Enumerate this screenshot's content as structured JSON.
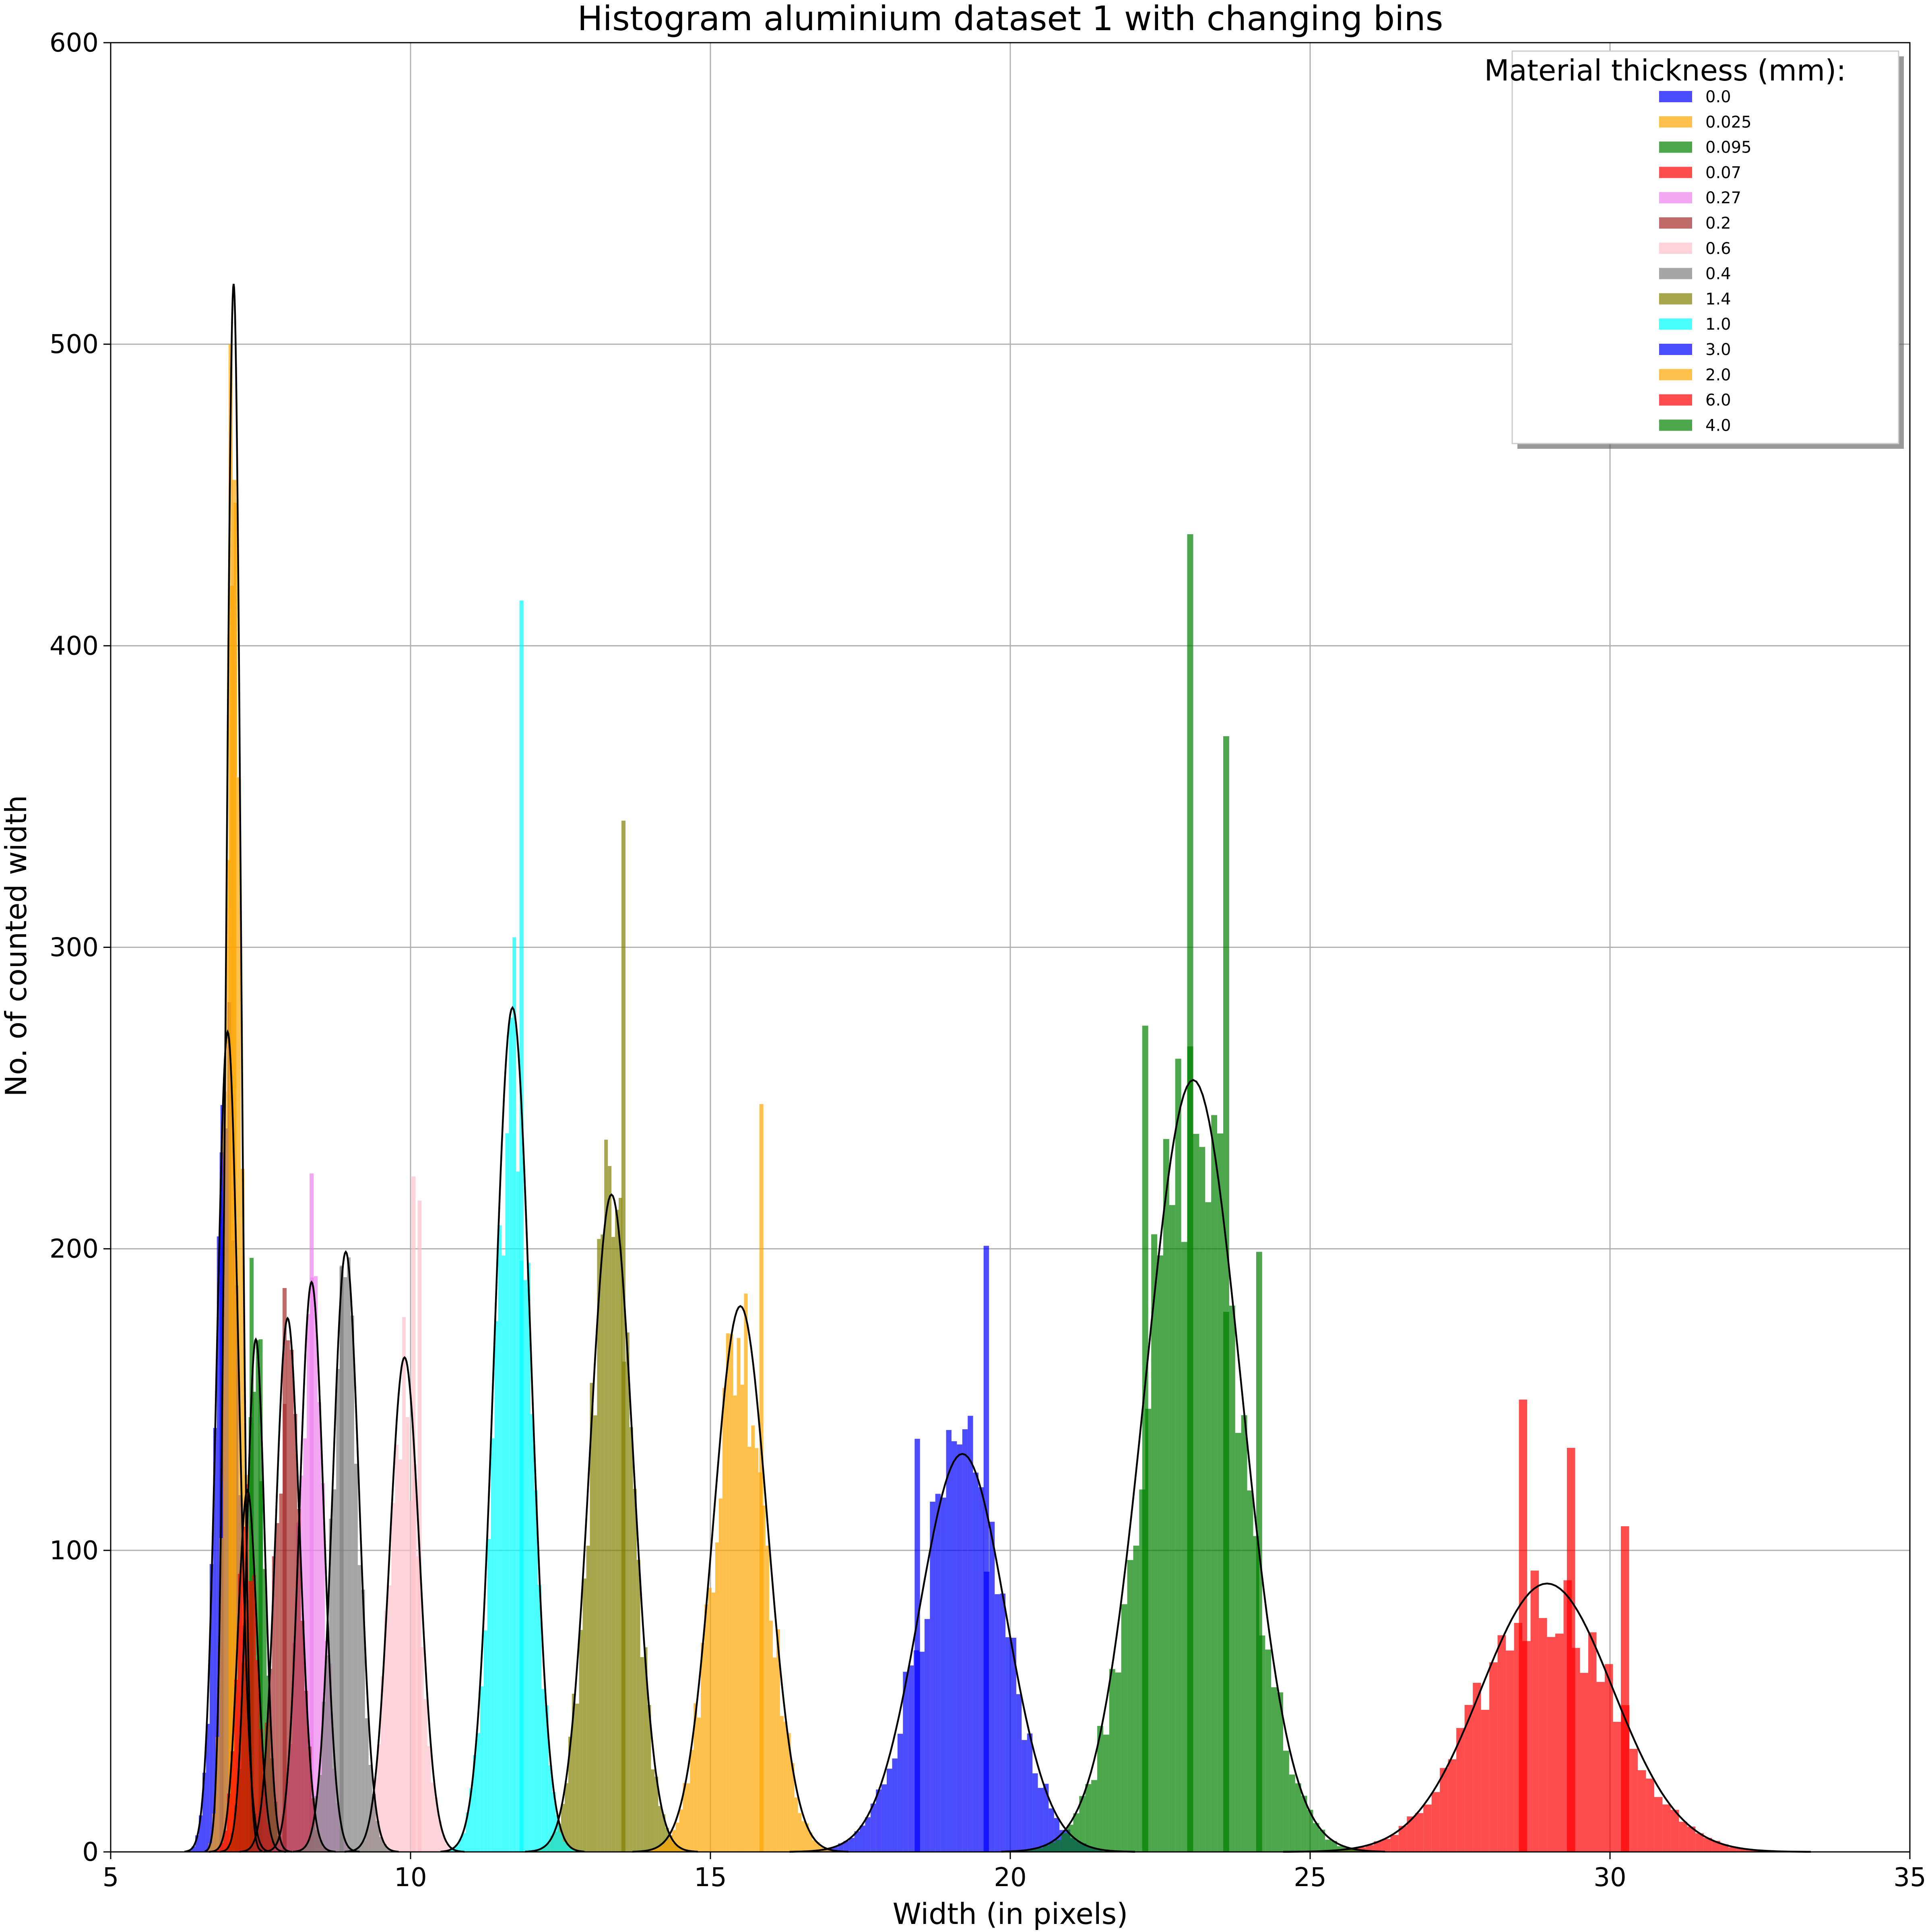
{
  "chart_data": {
    "type": "bar",
    "title": "Histogram aluminium dataset 1 with changing bins",
    "xlabel": "Width (in pixels)",
    "ylabel": "No. of counted width",
    "xlim": [
      5,
      35
    ],
    "ylim": [
      0,
      600
    ],
    "xticks": [
      5,
      10,
      15,
      20,
      25,
      30,
      35
    ],
    "yticks": [
      0,
      100,
      200,
      300,
      400,
      500,
      600
    ],
    "grid": true,
    "legend": {
      "title": "Material thickness (mm):",
      "placement": "top-right",
      "entries": [
        "0.0",
        "0.025",
        "0.095",
        "0.07",
        "0.27",
        "0.2",
        "0.6",
        "0.4",
        "1.4",
        "1.0",
        "3.0",
        "2.0",
        "6.0",
        "4.0"
      ]
    },
    "series": [
      {
        "name": "0.0",
        "color": "#0000ff",
        "mean": 6.95,
        "sd": 0.18,
        "peak": 272,
        "bins": [
          [
            6.85,
            232
          ]
        ]
      },
      {
        "name": "0.025",
        "color": "#ffa500",
        "mean": 7.05,
        "sd": 0.12,
        "peak": 520,
        "bins": [
          [
            7.0,
            500
          ],
          [
            7.06,
            455
          ]
        ]
      },
      {
        "name": "0.095",
        "color": "#008000",
        "mean": 7.42,
        "sd": 0.15,
        "peak": 170,
        "bins": [
          [
            7.35,
            197
          ],
          [
            7.5,
            170
          ]
        ]
      },
      {
        "name": "0.07",
        "color": "#ff0000",
        "mean": 7.28,
        "sd": 0.16,
        "peak": 120,
        "bins": []
      },
      {
        "name": "0.27",
        "color": "#ee82ee",
        "mean": 8.35,
        "sd": 0.2,
        "peak": 189,
        "bins": [
          [
            8.35,
            225
          ]
        ]
      },
      {
        "name": "0.2",
        "color": "#a52a2a",
        "mean": 7.95,
        "sd": 0.2,
        "peak": 177,
        "bins": [
          [
            7.9,
            187
          ]
        ]
      },
      {
        "name": "0.6",
        "color": "#ffc0cb",
        "mean": 9.9,
        "sd": 0.25,
        "peak": 164,
        "bins": [
          [
            10.05,
            224
          ],
          [
            10.15,
            216
          ]
        ]
      },
      {
        "name": "0.4",
        "color": "#808080",
        "mean": 8.92,
        "sd": 0.22,
        "peak": 199,
        "bins": [
          [
            8.85,
            194
          ]
        ]
      },
      {
        "name": "1.4",
        "color": "#808000",
        "mean": 13.35,
        "sd": 0.36,
        "peak": 218,
        "bins": [
          [
            13.55,
            342
          ]
        ]
      },
      {
        "name": "1.0",
        "color": "#00ffff",
        "mean": 11.7,
        "sd": 0.3,
        "peak": 280,
        "bins": [
          [
            11.85,
            415
          ]
        ]
      },
      {
        "name": "3.0",
        "color": "#0000ff",
        "mean": 19.2,
        "sd": 0.72,
        "peak": 132,
        "bins": [
          [
            19.6,
            201
          ],
          [
            18.45,
            137
          ]
        ]
      },
      {
        "name": "2.0",
        "color": "#ffa500",
        "mean": 15.5,
        "sd": 0.45,
        "peak": 181,
        "bins": [
          [
            15.85,
            248
          ]
        ]
      },
      {
        "name": "6.0",
        "color": "#ff0000",
        "mean": 28.95,
        "sd": 1.1,
        "peak": 89,
        "bins": [
          [
            28.55,
            150
          ],
          [
            29.35,
            134
          ],
          [
            30.25,
            108
          ]
        ]
      },
      {
        "name": "4.0",
        "color": "#008000",
        "mean": 23.05,
        "sd": 0.8,
        "peak": 256,
        "bins": [
          [
            23.0,
            437
          ],
          [
            23.6,
            370
          ],
          [
            22.25,
            274
          ],
          [
            24.15,
            199
          ]
        ]
      }
    ]
  }
}
